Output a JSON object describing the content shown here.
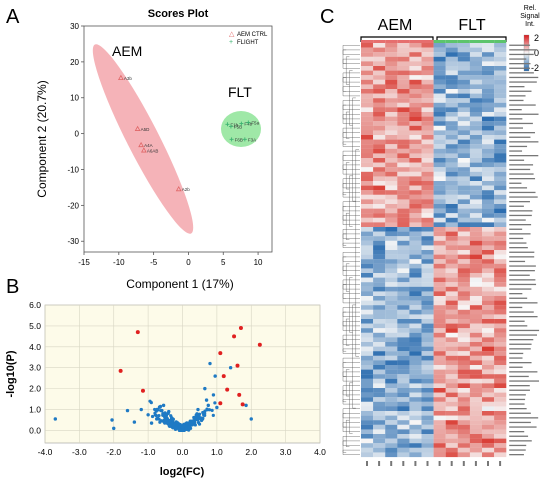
{
  "panels": {
    "a": {
      "letter": "A"
    },
    "b": {
      "letter": "B"
    },
    "c": {
      "letter": "C"
    }
  },
  "chart_data": [
    {
      "type": "scatter",
      "panel": "A",
      "title": "Scores Plot",
      "xlabel": "Component 1 (17%)",
      "ylabel": "Component 2 (20.7%)",
      "xlim": [
        -15,
        12
      ],
      "ylim": [
        -33,
        30
      ],
      "xticks": [
        -15,
        -10,
        -5,
        0,
        5,
        10
      ],
      "yticks": [
        -30,
        -20,
        -10,
        0,
        10,
        20,
        30
      ],
      "legend": {
        "placement": "top-right",
        "entries": [
          "AEM CTRL",
          "FLIGHT"
        ]
      },
      "group_labels": [
        "AEM",
        "FLT"
      ],
      "series": [
        {
          "name": "AEM CTRL",
          "color": "#e06666",
          "marker": "triangle",
          "points": [
            {
              "x": -9.7,
              "y": 15.5,
              "label": "A3b"
            },
            {
              "x": -7.3,
              "y": 1.3,
              "label": "A5D"
            },
            {
              "x": -6.8,
              "y": -3.2,
              "label": "A4A"
            },
            {
              "x": -6.4,
              "y": -4.7,
              "label": "A6AB"
            },
            {
              "x": -1.4,
              "y": -15.5,
              "label": "A2b"
            }
          ]
        },
        {
          "name": "FLIGHT",
          "color": "#3cb371",
          "marker": "plus",
          "points": [
            {
              "x": 5.6,
              "y": 2.6,
              "label": "F1b"
            },
            {
              "x": 6.1,
              "y": 2.0,
              "label": "F5B"
            },
            {
              "x": 7.6,
              "y": 2.8,
              "label": "F4b"
            },
            {
              "x": 8.6,
              "y": 3.1,
              "label": "F5a"
            },
            {
              "x": 6.2,
              "y": -1.6,
              "label": "F6B"
            },
            {
              "x": 8.1,
              "y": -1.6,
              "label": "F3A"
            }
          ]
        }
      ]
    },
    {
      "type": "scatter",
      "panel": "B",
      "xlabel": "log2(FC)",
      "ylabel": "-log10(P)",
      "xlim": [
        -4.0,
        4.0
      ],
      "ylim": [
        -0.6,
        6.0
      ],
      "xticks": [
        "-4.0",
        "-3.0",
        "-2.0",
        "-1.0",
        "0.0",
        "1.0",
        "2.0",
        "3.0",
        "4.0"
      ],
      "yticks": [
        "0.0",
        "1.0",
        "2.0",
        "3.0",
        "4.0",
        "5.0",
        "6.0"
      ],
      "grid": true,
      "series": [
        {
          "color": "#e02020",
          "points": [
            {
              "x": -1.3,
              "y": 4.7
            },
            {
              "x": -1.8,
              "y": 2.85
            },
            {
              "x": -1.15,
              "y": 1.9
            },
            {
              "x": 1.5,
              "y": 4.5
            },
            {
              "x": 1.7,
              "y": 4.9
            },
            {
              "x": 2.25,
              "y": 4.1
            },
            {
              "x": 1.1,
              "y": 3.7
            },
            {
              "x": 1.2,
              "y": 2.6
            },
            {
              "x": 1.6,
              "y": 3.1
            },
            {
              "x": 1.3,
              "y": 1.95
            },
            {
              "x": 1.65,
              "y": 1.7
            },
            {
              "x": 1.75,
              "y": 1.25
            },
            {
              "x": 1.1,
              "y": 1.3
            }
          ]
        },
        {
          "color": "#1f7ac4",
          "points": [
            {
              "x": -3.7,
              "y": 0.55
            },
            {
              "x": -2.05,
              "y": 0.5
            },
            {
              "x": -2.0,
              "y": 0.1
            },
            {
              "x": -1.6,
              "y": 0.95
            },
            {
              "x": -1.2,
              "y": 1.0
            },
            {
              "x": -1.4,
              "y": 0.4
            },
            {
              "x": -1.0,
              "y": 0.75
            },
            {
              "x": -0.9,
              "y": 0.35
            },
            {
              "x": -0.75,
              "y": 0.55
            },
            {
              "x": 1.4,
              "y": 3.0
            },
            {
              "x": 1.85,
              "y": 1.2
            },
            {
              "x": 2.0,
              "y": 0.55
            },
            {
              "x": 0.8,
              "y": 3.2
            },
            {
              "x": 0.65,
              "y": 2.0
            },
            {
              "x": 0.95,
              "y": 2.6
            },
            {
              "x": 0.9,
              "y": 1.7
            },
            {
              "x": 0.7,
              "y": 1.45
            },
            {
              "x": 1.0,
              "y": 1.1
            },
            {
              "x": 0.75,
              "y": 1.2
            },
            {
              "x": 0.45,
              "y": 1.0
            },
            {
              "x": -0.55,
              "y": 1.2
            },
            {
              "x": -0.4,
              "y": 0.9
            },
            {
              "x": -0.6,
              "y": 0.95
            }
          ]
        }
      ]
    },
    {
      "type": "heatmap",
      "panel": "C",
      "column_groups": [
        "AEM",
        "FLT"
      ],
      "colorbar": {
        "title": "Rel. Signal Int.",
        "ticks": [
          "2",
          "0",
          "-2"
        ]
      },
      "samples_per_group": 6,
      "rows_shown": 90
    }
  ]
}
